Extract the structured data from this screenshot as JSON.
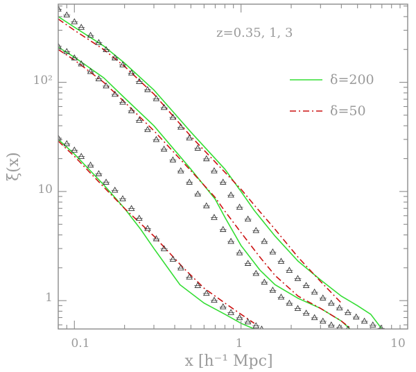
{
  "chart_data": {
    "type": "line",
    "title": "",
    "xlabel": "x [h⁻¹ Mpc]",
    "ylabel": "ξ(x)",
    "xscale": "log",
    "yscale": "log",
    "xlim": [
      0.08,
      10
    ],
    "ylim": [
      0.55,
      520
    ],
    "grid": false,
    "x_ticks": [
      {
        "value": 0.1,
        "label": "0.1"
      },
      {
        "value": 1,
        "label": "1"
      },
      {
        "value": 10,
        "label": "10"
      }
    ],
    "y_ticks": [
      {
        "value": 1,
        "label": "1"
      },
      {
        "value": 10,
        "label": "10"
      },
      {
        "value": 100,
        "label": "10²"
      }
    ],
    "annotation": "z=0.35, 1, 3",
    "legend": {
      "placement": "top-right",
      "entries": [
        {
          "label": "δ=200",
          "color": "#33dd33",
          "dash": "solid"
        },
        {
          "label": "δ=50",
          "color": "#cc1111",
          "dash": "dash-dot"
        }
      ]
    },
    "series": [
      {
        "name": "δ=200",
        "group": "z=0.35",
        "color": "#33dd33",
        "style": "solid",
        "x": [
          0.08,
          0.1,
          0.15,
          0.2,
          0.3,
          0.5,
          0.8,
          1.0,
          1.2,
          1.6,
          2.2,
          3.0,
          4.0,
          5.0,
          6.0,
          7.0
        ],
        "y": [
          400,
          320,
          215,
          150,
          85,
          35,
          16,
          10,
          6.7,
          3.9,
          2.3,
          1.55,
          1.1,
          0.9,
          0.75,
          0.55
        ]
      },
      {
        "name": "δ=50",
        "group": "z=0.35",
        "color": "#cc1111",
        "style": "dash-dot",
        "x": [
          0.08,
          0.1,
          0.15,
          0.2,
          0.3,
          0.5,
          0.8,
          1.0,
          1.2,
          1.6,
          2.2,
          3.0,
          4.0
        ],
        "y": [
          380,
          300,
          200,
          140,
          78,
          32,
          15,
          10.5,
          7.5,
          4.5,
          2.5,
          1.5,
          0.95
        ]
      },
      {
        "name": "δ=200",
        "group": "z=1",
        "color": "#33dd33",
        "style": "solid",
        "x": [
          0.08,
          0.1,
          0.15,
          0.2,
          0.3,
          0.5,
          0.7,
          0.8,
          1.0,
          1.3,
          1.6,
          2.2,
          3.0,
          4.0,
          4.5
        ],
        "y": [
          210,
          170,
          110,
          72,
          40,
          16,
          8.5,
          5.8,
          3.2,
          1.9,
          1.4,
          1.05,
          0.85,
          0.65,
          0.55
        ]
      },
      {
        "name": "δ=50",
        "group": "z=1",
        "color": "#cc1111",
        "style": "dash-dot",
        "x": [
          0.08,
          0.1,
          0.15,
          0.2,
          0.3,
          0.5,
          0.7,
          0.8,
          1.0,
          1.3,
          1.6,
          2.2,
          3.0,
          4.0,
          4.6
        ],
        "y": [
          200,
          160,
          100,
          66,
          36,
          15.5,
          8.8,
          6.6,
          4.2,
          2.5,
          1.7,
          1.1,
          0.85,
          0.65,
          0.55
        ]
      },
      {
        "name": "δ=200",
        "group": "z=3",
        "color": "#33dd33",
        "style": "solid",
        "x": [
          0.08,
          0.1,
          0.15,
          0.2,
          0.25,
          0.3,
          0.43,
          0.6,
          0.8,
          1.0,
          1.2
        ],
        "y": [
          30,
          22,
          11.5,
          7.0,
          4.5,
          3.0,
          1.4,
          0.95,
          0.75,
          0.62,
          0.55
        ]
      },
      {
        "name": "δ=50",
        "group": "z=3",
        "color": "#cc1111",
        "style": "dash-dot",
        "x": [
          0.08,
          0.1,
          0.15,
          0.2,
          0.3,
          0.45,
          0.6,
          0.8,
          1.0,
          1.2
        ],
        "y": [
          29,
          21,
          11,
          7.0,
          3.9,
          2.0,
          1.3,
          0.95,
          0.75,
          0.62
        ]
      },
      {
        "name": "",
        "group": "z=0.35",
        "color": "#333333",
        "style": "triangles",
        "x": [
          0.08,
          0.09,
          0.1,
          0.11,
          0.125,
          0.14,
          0.155,
          0.175,
          0.195,
          0.22,
          0.245,
          0.275,
          0.31,
          0.345,
          0.39,
          0.435,
          0.49,
          0.55,
          0.62,
          0.69,
          0.78,
          0.87,
          0.98,
          1.1,
          1.23,
          1.38,
          1.55,
          1.74,
          1.95,
          2.19,
          2.46,
          2.76,
          3.1,
          3.48,
          3.9,
          4.38,
          4.91,
          5.5,
          6.18,
          6.93
        ],
        "y": [
          470,
          415,
          360,
          320,
          270,
          232,
          200,
          168,
          145,
          122,
          102,
          86,
          71,
          59,
          48,
          39,
          31,
          25,
          20,
          15.5,
          12.2,
          9.3,
          7.2,
          5.6,
          4.4,
          3.5,
          2.8,
          2.3,
          1.9,
          1.6,
          1.38,
          1.2,
          1.06,
          0.95,
          0.86,
          0.78,
          0.71,
          0.65,
          0.6,
          0.56
        ]
      },
      {
        "name": "",
        "group": "z=1",
        "color": "#333333",
        "style": "triangles",
        "x": [
          0.08,
          0.09,
          0.1,
          0.11,
          0.125,
          0.14,
          0.155,
          0.175,
          0.195,
          0.22,
          0.245,
          0.275,
          0.31,
          0.345,
          0.39,
          0.435,
          0.49,
          0.55,
          0.62,
          0.69,
          0.78,
          0.87,
          0.98,
          1.1,
          1.23,
          1.38,
          1.55,
          1.74,
          1.95,
          2.19,
          2.46,
          2.76,
          3.1,
          3.48,
          3.9,
          4.38
        ],
        "y": [
          215,
          192,
          168,
          148,
          126,
          108,
          93,
          78,
          66,
          55,
          45,
          37,
          30,
          24.5,
          19.5,
          15.5,
          12.2,
          9.5,
          7.4,
          5.8,
          4.5,
          3.5,
          2.75,
          2.2,
          1.78,
          1.48,
          1.25,
          1.08,
          0.95,
          0.85,
          0.77,
          0.7,
          0.65,
          0.6,
          0.57,
          0.55
        ]
      },
      {
        "name": "",
        "group": "z=3",
        "color": "#333333",
        "style": "triangles",
        "x": [
          0.08,
          0.09,
          0.1,
          0.11,
          0.125,
          0.14,
          0.155,
          0.175,
          0.195,
          0.22,
          0.245,
          0.275,
          0.31,
          0.345,
          0.39,
          0.435,
          0.49,
          0.55,
          0.62,
          0.69,
          0.78,
          0.87,
          0.98,
          1.1,
          1.23,
          1.33
        ],
        "y": [
          31,
          27.5,
          24,
          21,
          17.5,
          14.6,
          12.2,
          10.3,
          8.6,
          7.0,
          5.7,
          4.6,
          3.7,
          3.0,
          2.4,
          2.0,
          1.65,
          1.38,
          1.17,
          1.01,
          0.88,
          0.78,
          0.7,
          0.64,
          0.59,
          0.55
        ]
      }
    ]
  }
}
